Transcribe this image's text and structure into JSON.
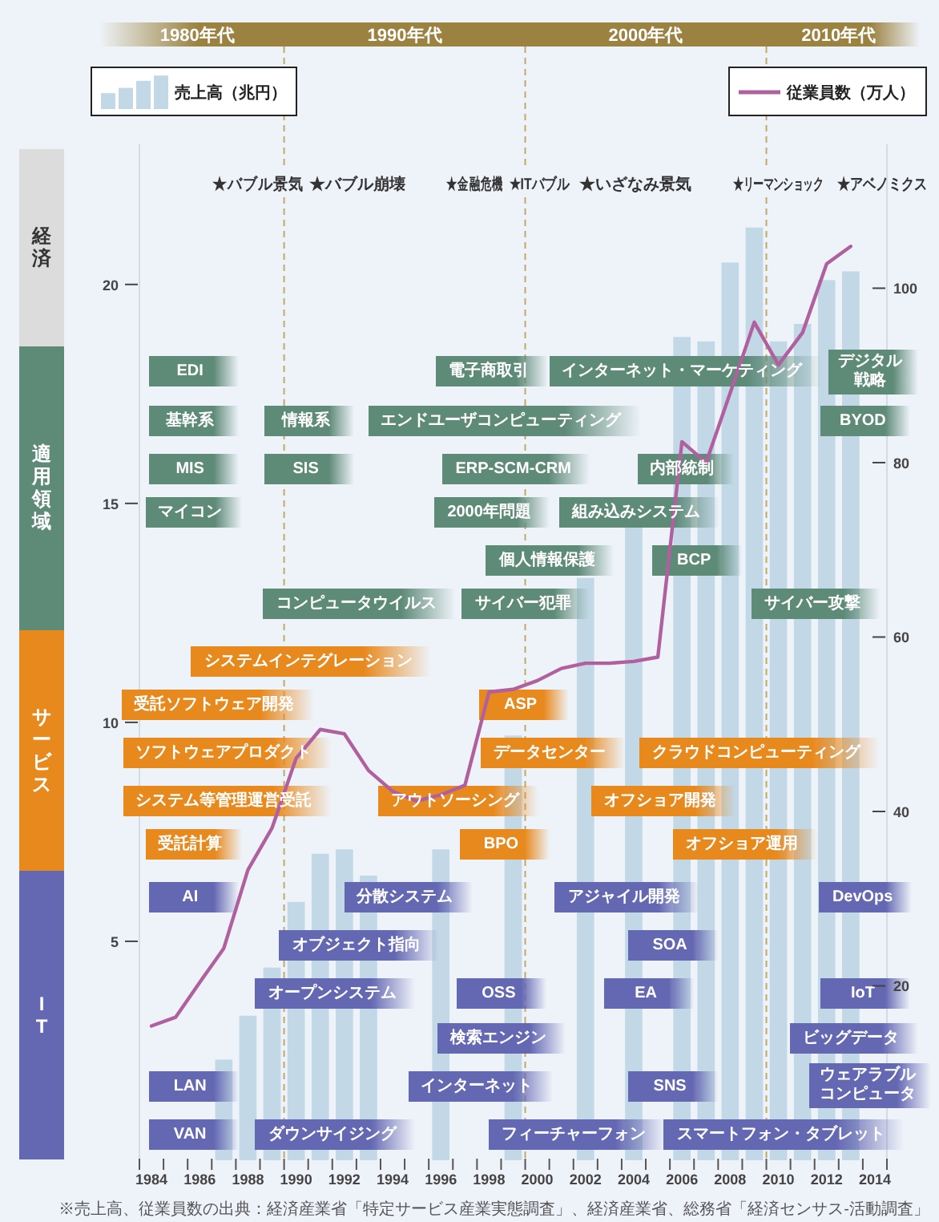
{
  "chart_data": {
    "type": "bar",
    "x": [
      1984,
      1985,
      1986,
      1987,
      1988,
      1989,
      1990,
      1991,
      1992,
      1993,
      1994,
      1995,
      1996,
      1997,
      1998,
      1999,
      2000,
      2001,
      2002,
      2003,
      2004,
      2005,
      2006,
      2007,
      2008,
      2009,
      2010,
      2011,
      2012,
      2013
    ],
    "series": [
      {
        "name": "売上高（兆円）",
        "color": "#c2d8e6",
        "values": [
          null,
          null,
          null,
          2.3,
          3.3,
          4.4,
          5.9,
          7.0,
          7.1,
          6.5,
          null,
          null,
          7.1,
          null,
          null,
          9.7,
          null,
          null,
          13.3,
          null,
          14.5,
          null,
          18.8,
          18.7,
          20.5,
          21.3,
          18.7,
          19.1,
          20.1,
          20.3
        ]
      },
      {
        "name": "従業員数（万人）",
        "type": "line",
        "axis": "y2",
        "color": "#b0609f",
        "values": [
          15.4,
          16.4,
          20.4,
          24.3,
          33.3,
          38.1,
          46.1,
          49.4,
          48.9,
          44.7,
          42.3,
          41.2,
          41.9,
          43.0,
          53.7,
          54.0,
          55.0,
          56.4,
          57.0,
          57.0,
          57.2,
          57.7,
          82.4,
          80.0,
          88.0,
          96.1,
          91.2,
          94.9,
          102.8,
          104.8
        ]
      }
    ],
    "xlim": [
      1983.5,
      2014.5
    ],
    "xticks": [
      {
        "value": 1983.5,
        "label": null
      },
      {
        "value": 1984.5,
        "label": null
      },
      {
        "value": 1985.5,
        "label": null
      },
      {
        "value": 1986.5,
        "label": null
      },
      {
        "value": 1987.5,
        "label": null
      },
      {
        "value": 1988.5,
        "label": null
      },
      {
        "value": 1989.5,
        "label": null
      },
      {
        "value": 1990.5,
        "label": null
      },
      {
        "value": 1991.5,
        "label": null
      },
      {
        "value": 1992.5,
        "label": null
      },
      {
        "value": 1993.5,
        "label": null
      },
      {
        "value": 1994.5,
        "label": null
      },
      {
        "value": 1995.5,
        "label": null
      },
      {
        "value": 1996.5,
        "label": null
      },
      {
        "value": 1997.5,
        "label": null
      },
      {
        "value": 1998.5,
        "label": null
      },
      {
        "value": 1999.5,
        "label": null
      },
      {
        "value": 2000.5,
        "label": null
      },
      {
        "value": 2001.5,
        "label": null
      },
      {
        "value": 2002.5,
        "label": null
      },
      {
        "value": 2003.5,
        "label": null
      },
      {
        "value": 2004.5,
        "label": null
      },
      {
        "value": 2005.5,
        "label": null
      },
      {
        "value": 2006.5,
        "label": null
      },
      {
        "value": 2007.5,
        "label": null
      },
      {
        "value": 2008.5,
        "label": null
      },
      {
        "value": 2009.5,
        "label": null
      },
      {
        "value": 2010.5,
        "label": null
      },
      {
        "value": 2011.5,
        "label": null
      },
      {
        "value": 2012.5,
        "label": null
      },
      {
        "value": 2013.5,
        "label": null
      },
      {
        "value": 2014.5,
        "label": null
      },
      1984,
      1986,
      1988,
      1990,
      1992,
      1994,
      1996,
      1998,
      2000,
      2002,
      2004,
      2006,
      2008,
      2010,
      2012,
      2014
    ],
    "ylim": [
      0,
      23.2
    ],
    "yticks": [
      5,
      10,
      15,
      20
    ],
    "y2lim": [
      0,
      116.5
    ],
    "y2ticks": [
      20,
      40,
      60,
      80,
      100
    ],
    "legend": "top",
    "ref_lines": [
      {
        "axis": "x",
        "value": 1989.5,
        "color": "#c2a868",
        "line_style": "dashed"
      },
      {
        "axis": "x",
        "value": 1999.5,
        "color": "#c2a868",
        "line_style": "dashed"
      },
      {
        "axis": "x",
        "value": 2009.5,
        "color": "#c2a868",
        "line_style": "dashed"
      }
    ],
    "annotations": [
      "1980年代",
      "1990年代",
      "2000年代",
      "2010年代",
      "★バブル景気",
      "★バブル崩壊",
      "★金融危機",
      "★ITバブル",
      "★いざなみ景気",
      "★リーマンショック",
      "★アベノミクス",
      "経済",
      "適用領域",
      "サービス",
      "IT",
      "EDI",
      "電子商取引",
      "インターネット・マーケティング",
      "デジタル戦略",
      "基幹系",
      "情報系",
      "エンドユーザコンピューティング",
      "BYOD",
      "MIS",
      "SIS",
      "ERP-SCM-CRM",
      "内部統制",
      "マイコン",
      "2000年問題",
      "組み込みシステム",
      "個人情報保護",
      "BCP",
      "コンピュータウイルス",
      "サイバー犯罪",
      "サイバー攻撃",
      "システムインテグレーション",
      "受託ソフトウェア開発",
      "ASP",
      "ソフトウェアプロダクト",
      "データセンター",
      "クラウドコンピューティング",
      "システム等管理運営受託",
      "アウトソーシング",
      "オフショア開発",
      "受託計算",
      "BPO",
      "オフショア運用",
      "AI",
      "分散システム",
      "アジャイル開発",
      "DevOps",
      "オブジェクト指向",
      "SOA",
      "オープンシステム",
      "OSS",
      "EA",
      "IoT",
      "検索エンジン",
      "ビッグデータ",
      "LAN",
      "インターネット",
      "SNS",
      "ウェアラブルコンピュータ",
      "VAN",
      "ダウンサイジング",
      "フィーチャーフォン",
      "スマートフォン・タブレット",
      "※売上高、従業員数の出典：経済産業省「特定サービス産業実態調査」、経済産業省、総務省「経済センサス-活動調査」"
    ]
  }
}
